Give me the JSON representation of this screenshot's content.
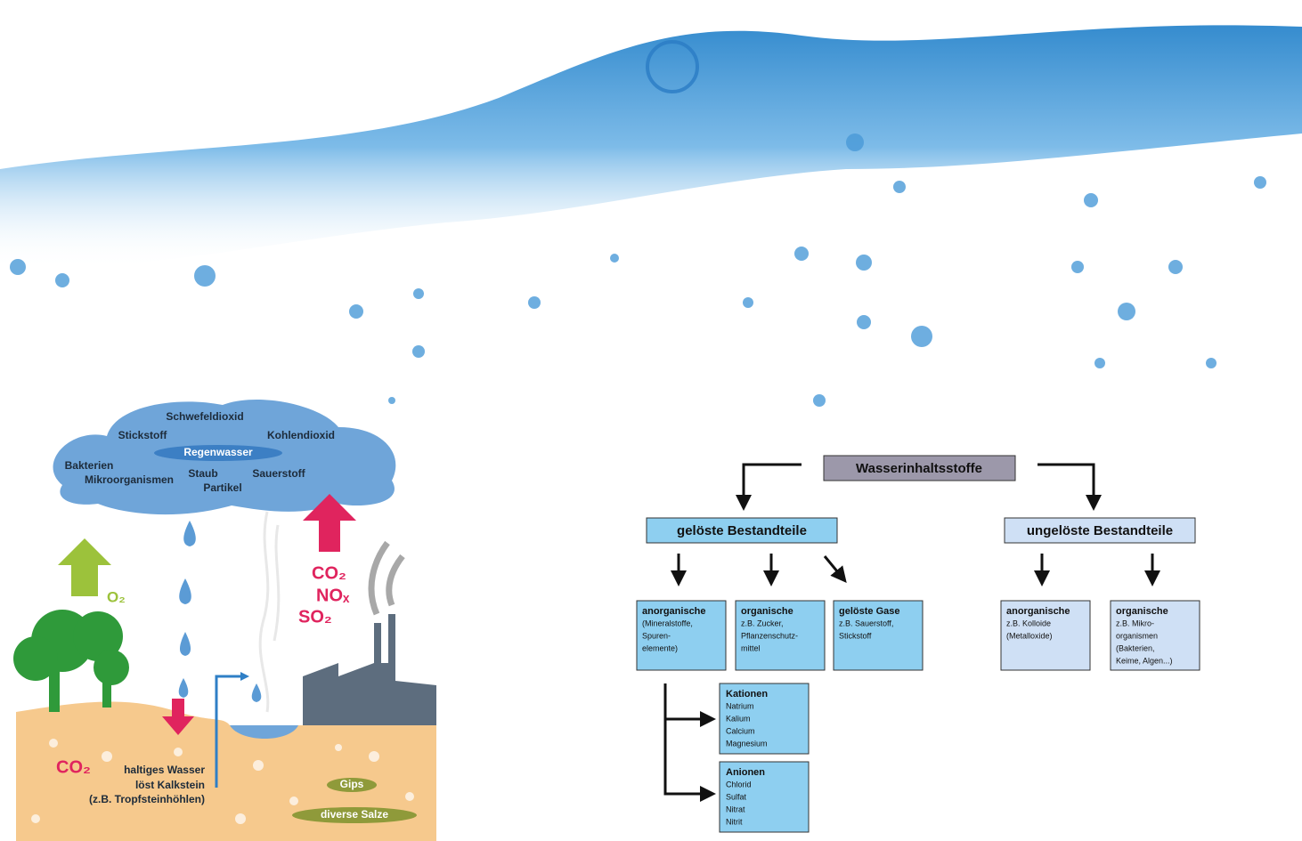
{
  "illustration": {
    "cloud": [
      "Schwefeldioxid",
      "Stickstoff",
      "Kohlendioxid",
      "Bakterien",
      "Mikroorganismen",
      "Staub",
      "Partikel",
      "Sauerstoff"
    ],
    "rain_label": "Regenwasser",
    "oxygen": "O₂",
    "emissions": [
      "CO₂",
      "NOₓ",
      "SO₂"
    ],
    "ground": {
      "co2": "CO₂",
      "lines": [
        "haltiges Wasser",
        "löst Kalkstein",
        "(z.B. Tropfsteinhöhlen)"
      ]
    },
    "deposits": [
      "Gips",
      "diverse Salze"
    ]
  },
  "hierarchy": {
    "root": "Wasserinhaltsstoffe",
    "branches": [
      {
        "label": "gelöste Bestandteile",
        "children": [
          {
            "title": "anorganische",
            "lines": [
              "(Mineralstoffe,",
              "Spuren-",
              "elemente)"
            ]
          },
          {
            "title": "organische",
            "lines": [
              "z.B. Zucker,",
              "Pflanzenschutz-",
              "mittel"
            ]
          },
          {
            "title": "gelöste Gase",
            "lines": [
              "z.B. Sauerstoff,",
              "Stickstoff"
            ]
          }
        ]
      },
      {
        "label": "ungelöste Bestandteile",
        "children": [
          {
            "title": "anorganische",
            "lines": [
              "z.B. Kolloide",
              "(Metalloxide)"
            ]
          },
          {
            "title": "organische",
            "lines": [
              "z.B. Mikro-",
              "organismen",
              "(Bakterien,",
              "Keime, Algen...)"
            ]
          }
        ]
      }
    ],
    "ions": [
      {
        "title": "Kationen",
        "lines": [
          "Natrium",
          "Kalium",
          "Calcium",
          "Magnesium"
        ]
      },
      {
        "title": "Anionen",
        "lines": [
          "Chlorid",
          "Sulfat",
          "Nitrat",
          "Nitrit"
        ]
      }
    ]
  }
}
